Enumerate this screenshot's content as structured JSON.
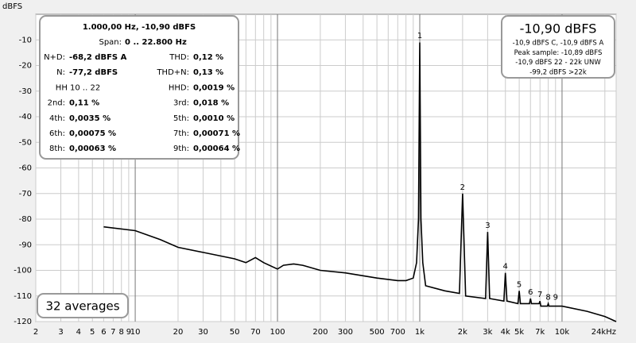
{
  "chart_data": {
    "type": "line",
    "xscale": "log",
    "y_label": "dBFS",
    "xlim": [
      2,
      24000
    ],
    "ylim": [
      -120,
      0
    ],
    "xticks": [
      2,
      3,
      4,
      5,
      6,
      7,
      8,
      9,
      10,
      20,
      30,
      50,
      70,
      100,
      200,
      300,
      500,
      700,
      {
        "value": 1000,
        "label": "1k"
      },
      {
        "value": 2000,
        "label": "2k"
      },
      {
        "value": 3000,
        "label": "3k"
      },
      {
        "value": 4000,
        "label": "4k"
      },
      {
        "value": 5000,
        "label": "5k"
      },
      {
        "value": 7000,
        "label": "7k"
      },
      {
        "value": 10000,
        "label": "10k"
      },
      {
        "value": 24000,
        "label": "24kHz"
      }
    ],
    "xminor": [
      40,
      60,
      80,
      90,
      400,
      600,
      800,
      900,
      6000,
      8000,
      9000,
      20000
    ],
    "yticks": [
      -10,
      -20,
      -30,
      -40,
      -50,
      -60,
      -70,
      -80,
      -90,
      -100,
      -110,
      -120
    ],
    "grid": true,
    "x": [
      6,
      10,
      15,
      20,
      30,
      50,
      60,
      70,
      80,
      100,
      110,
      130,
      150,
      200,
      300,
      500,
      700,
      800,
      900,
      950,
      980,
      1000,
      1020,
      1050,
      1100,
      1500,
      1900,
      2000,
      2100,
      2900,
      3000,
      3100,
      3900,
      4000,
      4100,
      4900,
      5000,
      5100,
      5900,
      6000,
      6100,
      6900,
      7000,
      7100,
      7900,
      8000,
      8100,
      10000,
      15000,
      20000,
      24000
    ],
    "series": [
      {
        "color": "#000000",
        "values": [
          -83,
          -84.5,
          -88,
          -91,
          -93,
          -95.5,
          -97,
          -95,
          -97,
          -99.5,
          -98,
          -97.5,
          -98,
          -100,
          -101,
          -103,
          -104,
          -104,
          -103,
          -97,
          -80,
          -11,
          -80,
          -97,
          -106,
          -108,
          -109,
          -70,
          -110,
          -111,
          -85,
          -111,
          -112,
          -101,
          -112,
          -113,
          -108,
          -113,
          -113,
          -111,
          -113,
          -113,
          -112,
          -114,
          -114,
          -113,
          -114,
          -114,
          -116,
          -118,
          -120
        ]
      }
    ],
    "harmonics": {
      "labels": [
        "1",
        "2",
        "3",
        "4",
        "5",
        "6",
        "7",
        "8",
        "9"
      ],
      "x": [
        1000,
        2000,
        3000,
        4000,
        5000,
        6000,
        7000,
        8000,
        9000
      ],
      "values": [
        -10.9,
        -70,
        -85,
        -101,
        -108,
        -111,
        -112,
        -113,
        -113
      ]
    },
    "measure_box": {
      "header": "1.000,00 Hz, -10,90 dBFS",
      "span_label": "Span:",
      "span": "0 .. 22.800 Hz",
      "rows": [
        {
          "label": "N+D:",
          "value": "-68,2 dBFS A",
          "label2": "THD:",
          "value2": "0,12 %"
        },
        {
          "label": "N:",
          "value": "-77,2 dBFS",
          "label2": "THD+N:",
          "value2": "0,13 %"
        },
        {
          "label": "HH 10 .. 22",
          "label2": "HHD:",
          "value2": "0,0019 %"
        },
        {
          "label": "2nd:",
          "value": "0,11 %",
          "label2": "3rd:",
          "value2": "0,018 %"
        },
        {
          "label": "4th:",
          "value": "0,0035 %",
          "label2": "5th:",
          "value2": "0,0010 %"
        },
        {
          "label": "6th:",
          "value": "0,00075 %",
          "label2": "7th:",
          "value2": "0,00071 %"
        },
        {
          "label": "8th:",
          "value": "0,00063 %",
          "label2": "9th:",
          "value2": "0,00064 %"
        }
      ]
    },
    "level_box": {
      "title": "-10,90 dBFS",
      "lines": [
        "-10,9 dBFS C, -10,9 dBFS A",
        "Peak sample: -10,89 dBFS",
        "-10,9 dBFS 22 - 22k UNW",
        "-99,2 dBFS >22k"
      ]
    },
    "averages": "32 averages"
  }
}
